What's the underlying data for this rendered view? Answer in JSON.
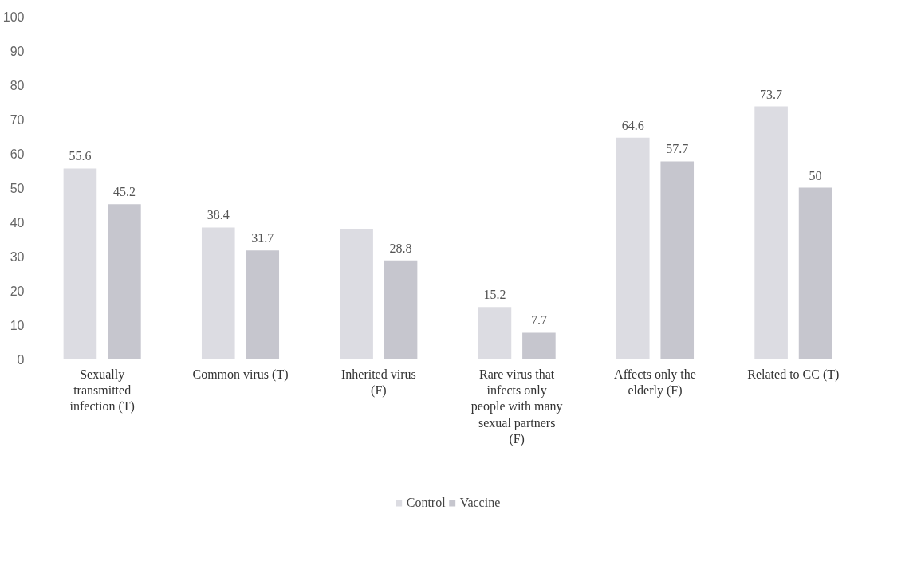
{
  "chart_data": {
    "type": "bar",
    "categories": [
      "Sexually transmitted infection (T)",
      "Common virus (T)",
      "Inherited virus (F)",
      "Rare virus that infects only people with many sexual partners (F)",
      "Affects only the elderly (F)",
      "Related to CC (T)"
    ],
    "series": [
      {
        "name": "Control",
        "color": "#dcdce2",
        "values": [
          55.6,
          38.4,
          38,
          15.2,
          64.6,
          73.7
        ],
        "value_labels": [
          "55.6",
          "38.4",
          null,
          "15.2",
          "64.6",
          "73.7"
        ]
      },
      {
        "name": "Vaccine",
        "color": "#c6c6ce",
        "values": [
          45.2,
          31.7,
          28.8,
          7.7,
          57.7,
          50
        ],
        "value_labels": [
          "45.2",
          "31.7",
          "28.8",
          "7.7",
          "57.7",
          "50"
        ]
      }
    ],
    "ylim": [
      0,
      100
    ],
    "yticks": [
      0,
      10,
      20,
      30,
      40,
      50,
      60,
      70,
      80,
      90,
      100
    ],
    "grid": false,
    "legend": "bottom"
  }
}
